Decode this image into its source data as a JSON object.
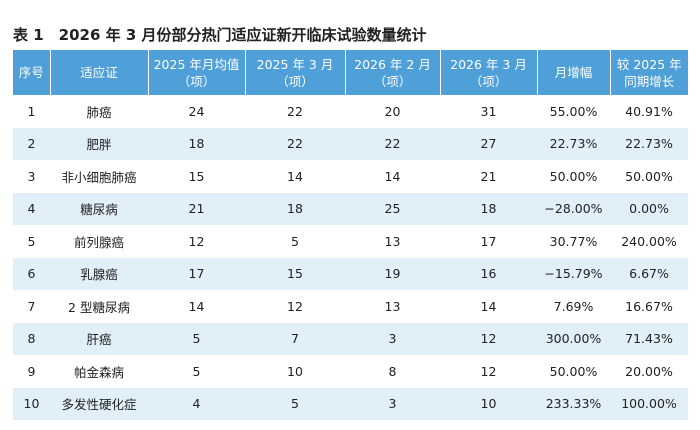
{
  "title": "表 1　2026 年 3 月份部分热门适应证新开临床试验数量统计",
  "table": {
    "headers": [
      [
        "序号"
      ],
      [
        "适应证"
      ],
      [
        "2025 年月均值",
        "（项）"
      ],
      [
        "2025 年 3 月",
        "（项）"
      ],
      [
        "2026 年 2 月",
        "（项）"
      ],
      [
        "2026 年 3 月",
        "（项）"
      ],
      [
        "月增幅"
      ],
      [
        "较 2025 年",
        "同期增长"
      ]
    ],
    "rows": [
      [
        "1",
        "肺癌",
        "24",
        "22",
        "20",
        "31",
        "55.00%",
        "40.91%"
      ],
      [
        "2",
        "肥胖",
        "18",
        "22",
        "22",
        "27",
        "22.73%",
        "22.73%"
      ],
      [
        "3",
        "非小细胞肺癌",
        "15",
        "14",
        "14",
        "21",
        "50.00%",
        "50.00%"
      ],
      [
        "4",
        "糖尿病",
        "21",
        "18",
        "25",
        "18",
        "−28.00%",
        "0.00%"
      ],
      [
        "5",
        "前列腺癌",
        "12",
        "5",
        "13",
        "17",
        "30.77%",
        "240.00%"
      ],
      [
        "6",
        "乳腺癌",
        "17",
        "15",
        "19",
        "16",
        "−15.79%",
        "6.67%"
      ],
      [
        "7",
        "2 型糖尿病",
        "14",
        "12",
        "13",
        "14",
        "7.69%",
        "16.67%"
      ],
      [
        "8",
        "肝癌",
        "5",
        "7",
        "3",
        "12",
        "300.00%",
        "71.43%"
      ],
      [
        "9",
        "帕金森病",
        "5",
        "10",
        "8",
        "12",
        "50.00%",
        "20.00%"
      ],
      [
        "10",
        "多发性硬化症",
        "4",
        "5",
        "3",
        "10",
        "233.33%",
        "100.00%"
      ]
    ]
  }
}
